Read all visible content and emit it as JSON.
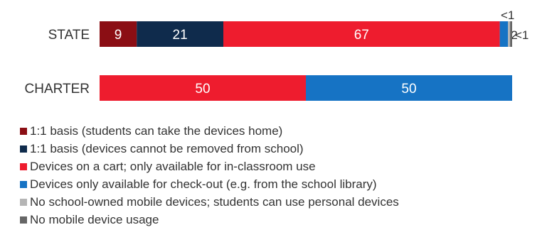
{
  "chart_data": {
    "type": "bar",
    "orientation": "horizontal",
    "stacked": true,
    "percent": true,
    "title": "",
    "xlabel": "",
    "ylabel": "",
    "xlim": [
      0,
      100
    ],
    "categories": [
      "STATE",
      "CHARTER"
    ],
    "series": [
      {
        "name": "1:1 basis (students can take the devices home)",
        "color": "#8b0e14",
        "values": [
          9,
          0
        ],
        "labels": [
          "9",
          ""
        ]
      },
      {
        "name": "1:1 basis (devices cannot be removed from school)",
        "color": "#0f2b4c",
        "values": [
          21,
          0
        ],
        "labels": [
          "21",
          ""
        ]
      },
      {
        "name": "Devices on a cart; only available for in-classroom use",
        "color": "#ee1c2e",
        "values": [
          67,
          50
        ],
        "labels": [
          "67",
          "50"
        ]
      },
      {
        "name": "Devices only available for check-out (e.g. from the school library)",
        "color": "#1673c4",
        "values": [
          2,
          50
        ],
        "labels": [
          "2",
          "50"
        ]
      },
      {
        "name": "No school-owned mobile devices; students can use personal devices",
        "color": "#b5b5b5",
        "values": [
          0.5,
          0
        ],
        "labels": [
          "<1",
          ""
        ]
      },
      {
        "name": "No mobile device usage",
        "color": "#666666",
        "values": [
          0.5,
          0
        ],
        "labels": [
          "<1",
          ""
        ]
      }
    ],
    "legend_position": "bottom-left",
    "grid": false
  }
}
